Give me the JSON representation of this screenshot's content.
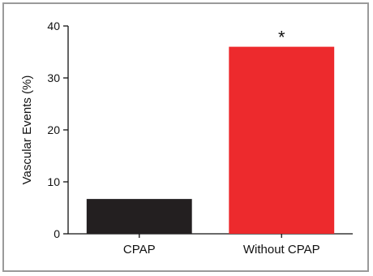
{
  "chart_data": {
    "type": "bar",
    "title": "",
    "xlabel": "",
    "ylabel": "Vascular Events (%)",
    "categories": [
      "CPAP",
      "Without CPAP"
    ],
    "values": [
      6.7,
      36.0
    ],
    "colors": [
      "#231f20",
      "#ed2a2d"
    ],
    "ylim": [
      0,
      40
    ],
    "yticks": [
      0,
      10,
      20,
      30,
      40
    ],
    "annotations": [
      {
        "category": "Without CPAP",
        "text": "*"
      }
    ],
    "grid": false,
    "legend": "none"
  }
}
